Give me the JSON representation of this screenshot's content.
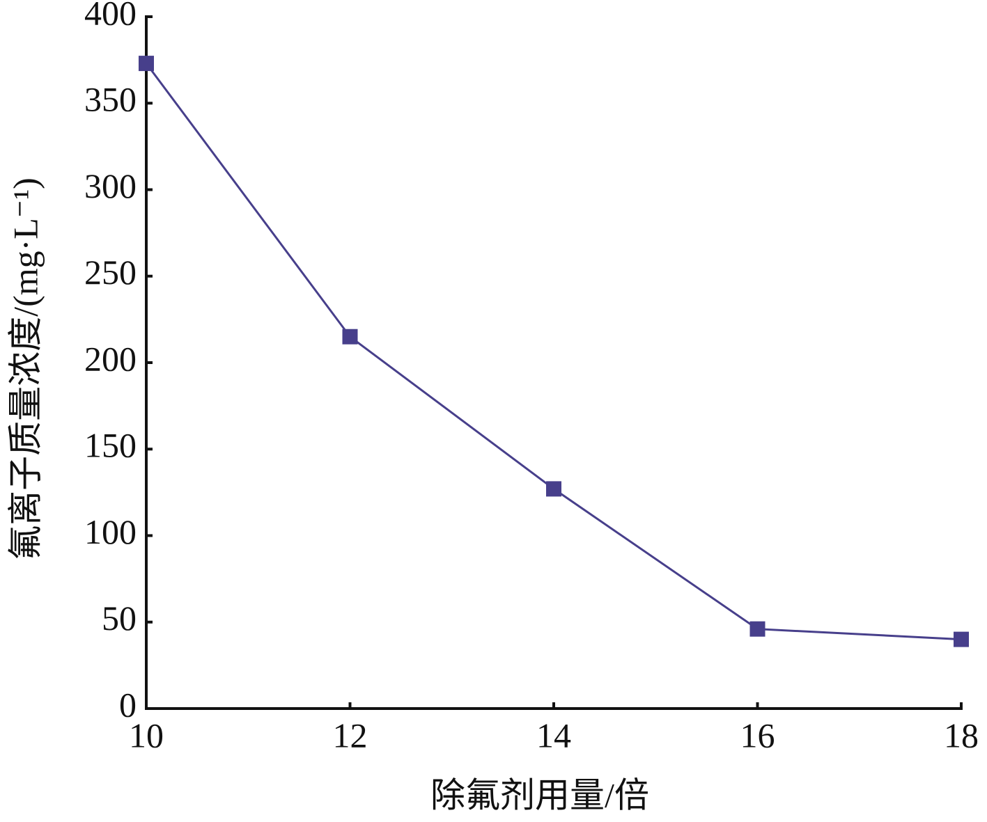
{
  "chart_data": {
    "type": "line",
    "x_label": "除氟剂用量/倍",
    "y_label": "氟离子质量浓度/(mg·L⁻¹)",
    "x": [
      10,
      12,
      14,
      16,
      18
    ],
    "values": [
      373,
      215,
      127,
      46,
      40
    ],
    "color": "#473f8b",
    "marker": "square",
    "xlim": [
      10,
      18
    ],
    "xticks": [
      10,
      12,
      14,
      16,
      18
    ],
    "ylim": [
      0,
      400
    ],
    "yticks": [
      0,
      50,
      100,
      150,
      200,
      250,
      300,
      350,
      400
    ],
    "grid": false
  }
}
